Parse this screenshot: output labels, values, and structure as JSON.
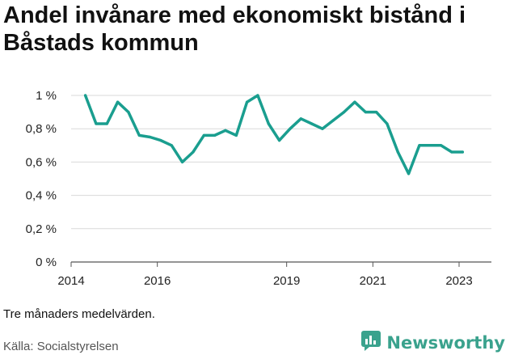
{
  "title": "Andel invånare med ekonomiskt bistånd i Båstads kommun",
  "note": "Tre månaders medelvärden.",
  "source": "Källa: Socialstyrelsen",
  "brand": {
    "name": "Newsworthy",
    "icon": "newsworthy-logo-icon",
    "color": "#3aa28d"
  },
  "chart_data": {
    "type": "line",
    "title": "Andel invånare med ekonomiskt bistånd i Båstads kommun",
    "xlabel": "",
    "ylabel": "",
    "xlim": [
      2014.0,
      2023.75
    ],
    "ylim": [
      0,
      1
    ],
    "y_ticks": [
      {
        "value": 0,
        "label": "0 %"
      },
      {
        "value": 0.2,
        "label": "0,2 %"
      },
      {
        "value": 0.4,
        "label": "0,4 %"
      },
      {
        "value": 0.6,
        "label": "0,6 %"
      },
      {
        "value": 0.8,
        "label": "0,8 %"
      },
      {
        "value": 1,
        "label": "1 %"
      }
    ],
    "x_ticks": [
      {
        "value": 2014,
        "label": "2014"
      },
      {
        "value": 2016,
        "label": "2016"
      },
      {
        "value": 2019,
        "label": "2019"
      },
      {
        "value": 2021,
        "label": "2021"
      },
      {
        "value": 2023,
        "label": "2023"
      }
    ],
    "grid": "horizontal",
    "color": "#1a9e8f",
    "series": [
      {
        "x": [
          2014.33,
          2014.58,
          2014.83,
          2015.08,
          2015.33,
          2015.58,
          2015.83,
          2016.08,
          2016.33,
          2016.58,
          2016.83,
          2017.08,
          2017.33,
          2017.58,
          2017.83,
          2018.08,
          2018.33,
          2018.58,
          2018.83,
          2019.08,
          2019.33,
          2019.58,
          2019.83,
          2020.08,
          2020.33,
          2020.58,
          2020.83,
          2021.08,
          2021.33,
          2021.58,
          2021.83,
          2022.08,
          2022.33,
          2022.58,
          2022.83,
          2023.08
        ],
        "values": [
          1.0,
          0.83,
          0.83,
          0.96,
          0.9,
          0.76,
          0.75,
          0.73,
          0.7,
          0.6,
          0.66,
          0.76,
          0.76,
          0.79,
          0.76,
          0.96,
          1.0,
          0.83,
          0.73,
          0.8,
          0.86,
          0.83,
          0.8,
          0.85,
          0.9,
          0.96,
          0.9,
          0.9,
          0.83,
          0.66,
          0.53,
          0.7,
          0.7,
          0.7,
          0.66,
          0.66
        ]
      }
    ]
  }
}
